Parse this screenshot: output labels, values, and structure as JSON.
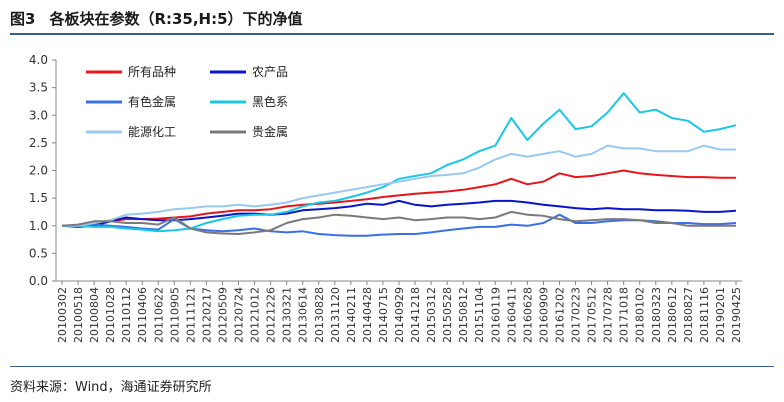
{
  "header": {
    "figure_no": "图3",
    "title": "各板块在参数（R:35,H:5）下的净值"
  },
  "footer": {
    "source": "资料来源：Wind，海通证券研究所"
  },
  "chart_data": {
    "type": "line",
    "title": "各板块在参数（R:35,H:5）下的净值",
    "ylim": [
      0,
      4.0
    ],
    "yticks": [
      "0.0",
      "0.5",
      "1.0",
      "1.5",
      "2.0",
      "2.5",
      "3.0",
      "3.5",
      "4.0"
    ],
    "grid": false,
    "legend_position": "top-left",
    "x_tick_labels": [
      "20100302",
      "20100518",
      "20100804",
      "20101028",
      "20110112",
      "20110406",
      "20110622",
      "20110905",
      "20111121",
      "20120217",
      "20120509",
      "20120724",
      "20121012",
      "20121226",
      "20130321",
      "20130614",
      "20130828",
      "20131120",
      "20140211",
      "20140428",
      "20140715",
      "20140929",
      "20141218",
      "20150312",
      "20150528",
      "20150812",
      "20151104",
      "20160119",
      "20160411",
      "20160628",
      "20160909",
      "20161202",
      "20170223",
      "20170512",
      "20170728",
      "20171018",
      "20180102",
      "20180323",
      "20180612",
      "20180827",
      "20181116",
      "20190201",
      "20190425"
    ],
    "series": [
      {
        "name": "所有品种",
        "color": "#e8141c",
        "values": [
          1.0,
          1.0,
          1.02,
          1.08,
          1.12,
          1.12,
          1.13,
          1.15,
          1.17,
          1.22,
          1.25,
          1.28,
          1.28,
          1.3,
          1.35,
          1.38,
          1.4,
          1.42,
          1.45,
          1.48,
          1.52,
          1.55,
          1.58,
          1.6,
          1.62,
          1.65,
          1.7,
          1.75,
          1.85,
          1.75,
          1.8,
          1.95,
          1.88,
          1.9,
          1.95,
          2.0,
          1.95,
          1.92,
          1.9,
          1.88,
          1.88,
          1.87,
          1.87
        ]
      },
      {
        "name": "农产品",
        "color": "#0a14c8",
        "values": [
          1.0,
          0.98,
          1.0,
          1.08,
          1.15,
          1.12,
          1.1,
          1.1,
          1.12,
          1.15,
          1.18,
          1.22,
          1.22,
          1.2,
          1.22,
          1.28,
          1.3,
          1.32,
          1.35,
          1.4,
          1.38,
          1.45,
          1.38,
          1.35,
          1.38,
          1.4,
          1.42,
          1.45,
          1.45,
          1.42,
          1.38,
          1.35,
          1.32,
          1.3,
          1.32,
          1.3,
          1.3,
          1.28,
          1.28,
          1.27,
          1.25,
          1.25,
          1.27
        ]
      },
      {
        "name": "有色金属",
        "color": "#3a6fe6",
        "values": [
          1.0,
          1.0,
          1.02,
          1.0,
          0.98,
          0.95,
          0.93,
          1.12,
          0.95,
          0.92,
          0.9,
          0.92,
          0.95,
          0.9,
          0.88,
          0.9,
          0.85,
          0.83,
          0.82,
          0.82,
          0.84,
          0.85,
          0.85,
          0.88,
          0.92,
          0.95,
          0.98,
          0.98,
          1.02,
          1.0,
          1.05,
          1.2,
          1.05,
          1.05,
          1.08,
          1.1,
          1.1,
          1.08,
          1.05,
          1.05,
          1.03,
          1.03,
          1.05
        ]
      },
      {
        "name": "黑色系",
        "color": "#18c8e6",
        "values": [
          1.0,
          1.0,
          0.98,
          0.98,
          0.95,
          0.93,
          0.9,
          0.92,
          0.95,
          1.05,
          1.12,
          1.18,
          1.2,
          1.2,
          1.25,
          1.35,
          1.42,
          1.45,
          1.52,
          1.6,
          1.7,
          1.85,
          1.9,
          1.95,
          2.1,
          2.2,
          2.35,
          2.45,
          2.95,
          2.55,
          2.85,
          3.1,
          2.75,
          2.8,
          3.05,
          3.4,
          3.05,
          3.1,
          2.95,
          2.9,
          2.7,
          2.75,
          2.82
        ]
      },
      {
        "name": "能源化工",
        "color": "#99c8f0",
        "values": [
          1.0,
          1.0,
          1.05,
          1.1,
          1.2,
          1.22,
          1.25,
          1.3,
          1.32,
          1.35,
          1.35,
          1.38,
          1.35,
          1.38,
          1.42,
          1.5,
          1.55,
          1.6,
          1.65,
          1.7,
          1.75,
          1.8,
          1.85,
          1.9,
          1.92,
          1.95,
          2.05,
          2.2,
          2.3,
          2.25,
          2.3,
          2.35,
          2.25,
          2.3,
          2.45,
          2.4,
          2.4,
          2.35,
          2.35,
          2.35,
          2.45,
          2.38,
          2.38
        ]
      },
      {
        "name": "贵金属",
        "color": "#7a7a7a",
        "values": [
          1.0,
          1.02,
          1.08,
          1.08,
          1.05,
          1.05,
          1.02,
          1.15,
          0.95,
          0.88,
          0.86,
          0.85,
          0.88,
          0.92,
          1.05,
          1.12,
          1.15,
          1.2,
          1.18,
          1.15,
          1.12,
          1.15,
          1.1,
          1.12,
          1.15,
          1.15,
          1.12,
          1.15,
          1.25,
          1.2,
          1.18,
          1.12,
          1.08,
          1.1,
          1.12,
          1.12,
          1.1,
          1.05,
          1.05,
          1.0,
          1.0,
          1.0,
          1.0
        ]
      }
    ]
  }
}
